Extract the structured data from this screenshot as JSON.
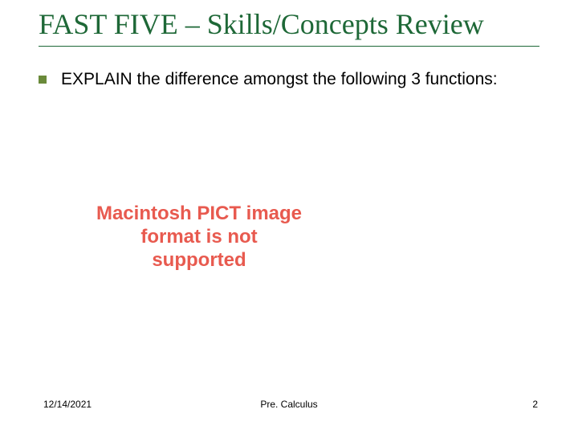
{
  "colors": {
    "title": "#1e6837",
    "underline": "#1e6837",
    "bullet": "#6a8a3a",
    "body_text": "#000000",
    "error_text": "#e85a4f",
    "footer_text": "#000000",
    "background": "#ffffff"
  },
  "title": "FAST FIVE – Skills/Concepts Review",
  "bullets": [
    {
      "text": "EXPLAIN the difference amongst the following 3 functions:"
    }
  ],
  "error_message": "Macintosh PICT image format is not supported",
  "footer": {
    "date": "12/14/2021",
    "center": "Pre. Calculus",
    "page": "2"
  },
  "typography": {
    "title_fontsize": 36,
    "body_fontsize": 21,
    "error_fontsize": 24,
    "footer_fontsize": 12
  }
}
